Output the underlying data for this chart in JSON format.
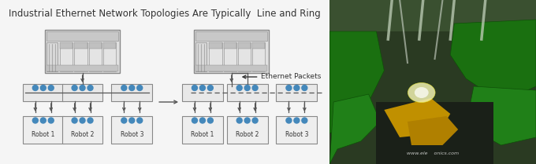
{
  "title": "Industrial Ethernet Network Topologies Are Typically  Line and Ring",
  "title_fontsize": 8.5,
  "title_color": "#333333",
  "bg_color": "#f5f5f5",
  "diagram_ratio": 0.615,
  "robot_labels": [
    "Robot 1",
    "Robot 2",
    "Robot 3"
  ],
  "line_color": "#555555",
  "ctrl_face": "#e0e0e0",
  "ctrl_edge": "#888888",
  "robot_face": "#eeeeee",
  "robot_edge": "#888888",
  "switch_face": "#e8e8e8",
  "dot_color": "#4488bb",
  "photo_bg": "#3a5a2a",
  "photo_green1": "#1a7a18",
  "photo_green2": "#2a8a25",
  "photo_yellow": "#c8a000",
  "photo_spark": "#f8f8cc",
  "watermark": "www.ele    onics.com"
}
